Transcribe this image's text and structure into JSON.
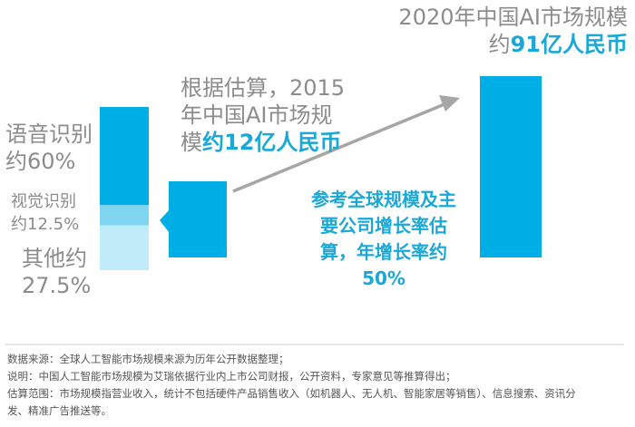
{
  "colors": {
    "main_bar": "#00aee6",
    "speech": "#00aee6",
    "vision": "#7fd6f0",
    "other": "#bfecf8",
    "arrow": "#a6a6a6",
    "text_gray": "#8c8c8c",
    "text_blue": "#19a8d8",
    "divider": "#cfcfcf"
  },
  "chart_data": [
    {
      "type": "bar",
      "categories": [
        "2015",
        "2020"
      ],
      "values": [
        12,
        91
      ],
      "unit": "亿人民币"
    },
    {
      "type": "bar",
      "subtype": "stacked-100",
      "categories": [
        "语音识别",
        "视觉识别",
        "其他"
      ],
      "values": [
        60,
        12.5,
        27.5
      ],
      "unit": "%"
    }
  ],
  "labels": {
    "speech_l1": "语音识别",
    "speech_l2": "约60%",
    "vision_l1": "视觉识别",
    "vision_l2": "约12.5%",
    "other_l1": "其他约",
    "other_l2": "27.5%",
    "y2015_l1": "根据估算，2015",
    "y2015_l2": "年中国AI市场规",
    "y2015_l3a": "模",
    "y2015_l3b": "约12亿人民币",
    "y2020_l1": "2020年中国AI市场规模",
    "y2020_l2a": "约",
    "y2020_l2b": "91亿人民币",
    "growth_l1": "参考全球规模及主",
    "growth_l2": "要公司增长率估",
    "growth_l3": "算，年增长率约",
    "growth_l4": "50%"
  },
  "notes": {
    "source": "数据来源：全球人工智能市场规模来源为历年公开数据整理；",
    "explain": "说明：中国人工智能市场规模为艾瑞依据行业内上市公司财报，公开资料，专家意见等推算得出；",
    "scope_l1": "估算范围：市场规模指营业收入，统计不包括硬件产品销售收入（如机器人、无人机、智能家居等销售）、信息搜索、资讯分",
    "scope_l2": "发、精准广告推送等。"
  }
}
